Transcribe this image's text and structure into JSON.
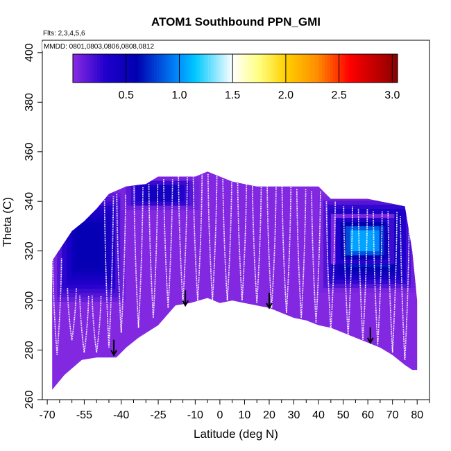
{
  "chart_data": {
    "type": "heatmap",
    "title": "ATOM1 Southbound PPN_GMI",
    "annotations": [
      "Flts: 2,3,4,5,6",
      "MMDD: 0801,0803,0806,0808,0812"
    ],
    "xlabel": "Latitude (deg N)",
    "ylabel": "Theta (C)",
    "xlim": [
      -72,
      85
    ],
    "ylim": [
      260,
      405
    ],
    "x_ticks": [
      -70,
      -55,
      -40,
      -25,
      -10,
      0,
      10,
      20,
      30,
      40,
      50,
      60,
      70,
      80
    ],
    "x_tick_labels": [
      "-70",
      "-55",
      "-40",
      "-25",
      "-10",
      "0",
      "10",
      "20",
      "30",
      "40",
      "50",
      "60",
      "70",
      "80"
    ],
    "x_minor_ticks": [
      -65,
      -60,
      -50,
      -45,
      -35,
      -30,
      -20,
      -15,
      -5,
      5,
      15,
      25,
      35,
      45,
      55,
      65,
      75,
      85
    ],
    "y_ticks": [
      260,
      280,
      300,
      320,
      340,
      360,
      380,
      400
    ],
    "y_tick_labels": [
      "260",
      "280",
      "300",
      "320",
      "340",
      "360",
      "380",
      "400"
    ],
    "colorbar": {
      "ticks": [
        0.5,
        1.0,
        1.5,
        2.0,
        2.5,
        3.0
      ],
      "tick_labels": [
        "0.5",
        "1.0",
        "1.5",
        "2.0",
        "2.5",
        "3.0"
      ],
      "range": [
        0.0,
        3.05
      ],
      "stops": [
        {
          "v": 0.0,
          "color": "#8a2be2"
        },
        {
          "v": 0.3,
          "color": "#2200cc"
        },
        {
          "v": 0.6,
          "color": "#0000b0"
        },
        {
          "v": 1.0,
          "color": "#0090ff"
        },
        {
          "v": 1.15,
          "color": "#00c8ff"
        },
        {
          "v": 1.5,
          "color": "#ffffff"
        },
        {
          "v": 1.75,
          "color": "#ffff80"
        },
        {
          "v": 2.0,
          "color": "#ffd000"
        },
        {
          "v": 2.3,
          "color": "#ff8c00"
        },
        {
          "v": 2.6,
          "color": "#ff0000"
        },
        {
          "v": 3.05,
          "color": "#8b0000"
        }
      ]
    },
    "field_envelope": {
      "top": [
        [
          -68,
          316
        ],
        [
          -64,
          322
        ],
        [
          -60,
          328
        ],
        [
          -55,
          332
        ],
        [
          -50,
          337
        ],
        [
          -45,
          343
        ],
        [
          -38,
          346
        ],
        [
          -30,
          347
        ],
        [
          -25,
          350
        ],
        [
          -20,
          350
        ],
        [
          -10,
          350
        ],
        [
          -5,
          352
        ],
        [
          0,
          350
        ],
        [
          5,
          348
        ],
        [
          10,
          347
        ],
        [
          15,
          346
        ],
        [
          20,
          346
        ],
        [
          30,
          346
        ],
        [
          40,
          346
        ],
        [
          45,
          341
        ],
        [
          50,
          341
        ],
        [
          55,
          341
        ],
        [
          60,
          341
        ],
        [
          65,
          340
        ],
        [
          70,
          339
        ],
        [
          75,
          338
        ],
        [
          78,
          320
        ],
        [
          80,
          300
        ]
      ],
      "bottom": [
        [
          -68,
          264
        ],
        [
          -63,
          270
        ],
        [
          -56,
          276
        ],
        [
          -50,
          277
        ],
        [
          -45,
          277
        ],
        [
          -42,
          277
        ],
        [
          -38,
          281
        ],
        [
          -33,
          285
        ],
        [
          -25,
          290
        ],
        [
          -18,
          298
        ],
        [
          -12,
          299
        ],
        [
          -5,
          301
        ],
        [
          0,
          299
        ],
        [
          5,
          300
        ],
        [
          10,
          299
        ],
        [
          15,
          298
        ],
        [
          20,
          297
        ],
        [
          25,
          295
        ],
        [
          30,
          293
        ],
        [
          35,
          292
        ],
        [
          40,
          290
        ],
        [
          45,
          289
        ],
        [
          50,
          287
        ],
        [
          55,
          285
        ],
        [
          60,
          283
        ],
        [
          65,
          281
        ],
        [
          70,
          278
        ],
        [
          75,
          274
        ],
        [
          78,
          272
        ],
        [
          80,
          272
        ]
      ]
    },
    "high_regions": [
      {
        "region": "southern-high-latitudes",
        "lat_range": [
          -68,
          -40
        ],
        "theta_range": [
          300,
          345
        ],
        "value": 0.55
      },
      {
        "region": "southern-midlatitude-top",
        "lat_range": [
          -40,
          -10
        ],
        "theta_range": [
          338,
          350
        ],
        "value": 0.45
      },
      {
        "region": "northern-high-latitudes",
        "lat_range": [
          40,
          78
        ],
        "theta_range": [
          305,
          342
        ],
        "value": 0.75
      },
      {
        "region": "northern-core",
        "lat_range": [
          45,
          70
        ],
        "theta_range": [
          315,
          335
        ],
        "value": 1.05
      }
    ],
    "profiles": [
      {
        "lat": -66,
        "theta_min": 278,
        "theta_max": 317
      },
      {
        "lat": -60,
        "theta_min": 284,
        "theta_max": 305
      },
      {
        "lat": -55,
        "theta_min": 279,
        "theta_max": 302
      },
      {
        "lat": -50,
        "theta_min": 279,
        "theta_max": 302
      },
      {
        "lat": -45,
        "theta_min": 281,
        "theta_max": 342
      },
      {
        "lat": -40,
        "theta_min": 287,
        "theta_max": 343
      },
      {
        "lat": -33,
        "theta_min": 289,
        "theta_max": 346
      },
      {
        "lat": -27,
        "theta_min": 293,
        "theta_max": 347
      },
      {
        "lat": -21,
        "theta_min": 297,
        "theta_max": 349
      },
      {
        "lat": -15,
        "theta_min": 299,
        "theta_max": 350
      },
      {
        "lat": -9,
        "theta_min": 300,
        "theta_max": 351
      },
      {
        "lat": -3,
        "theta_min": 300,
        "theta_max": 351
      },
      {
        "lat": 3,
        "theta_min": 300,
        "theta_max": 349
      },
      {
        "lat": 9,
        "theta_min": 300,
        "theta_max": 348
      },
      {
        "lat": 15,
        "theta_min": 299,
        "theta_max": 347
      },
      {
        "lat": 21,
        "theta_min": 297,
        "theta_max": 346
      },
      {
        "lat": 27,
        "theta_min": 295,
        "theta_max": 346
      },
      {
        "lat": 33,
        "theta_min": 293,
        "theta_max": 345
      },
      {
        "lat": 39,
        "theta_min": 291,
        "theta_max": 344
      },
      {
        "lat": 45,
        "theta_min": 288,
        "theta_max": 340
      },
      {
        "lat": 52,
        "theta_min": 286,
        "theta_max": 338
      },
      {
        "lat": 58,
        "theta_min": 284,
        "theta_max": 337
      },
      {
        "lat": 64,
        "theta_min": 282,
        "theta_max": 336
      },
      {
        "lat": 70,
        "theta_min": 279,
        "theta_max": 336
      },
      {
        "lat": 75,
        "theta_min": 276,
        "theta_max": 334
      }
    ],
    "arrows": [
      {
        "lat": -43,
        "theta_tip": 278
      },
      {
        "lat": -14,
        "theta_tip": 298
      },
      {
        "lat": 20,
        "theta_tip": 297
      },
      {
        "lat": 61,
        "theta_tip": 283
      }
    ]
  }
}
